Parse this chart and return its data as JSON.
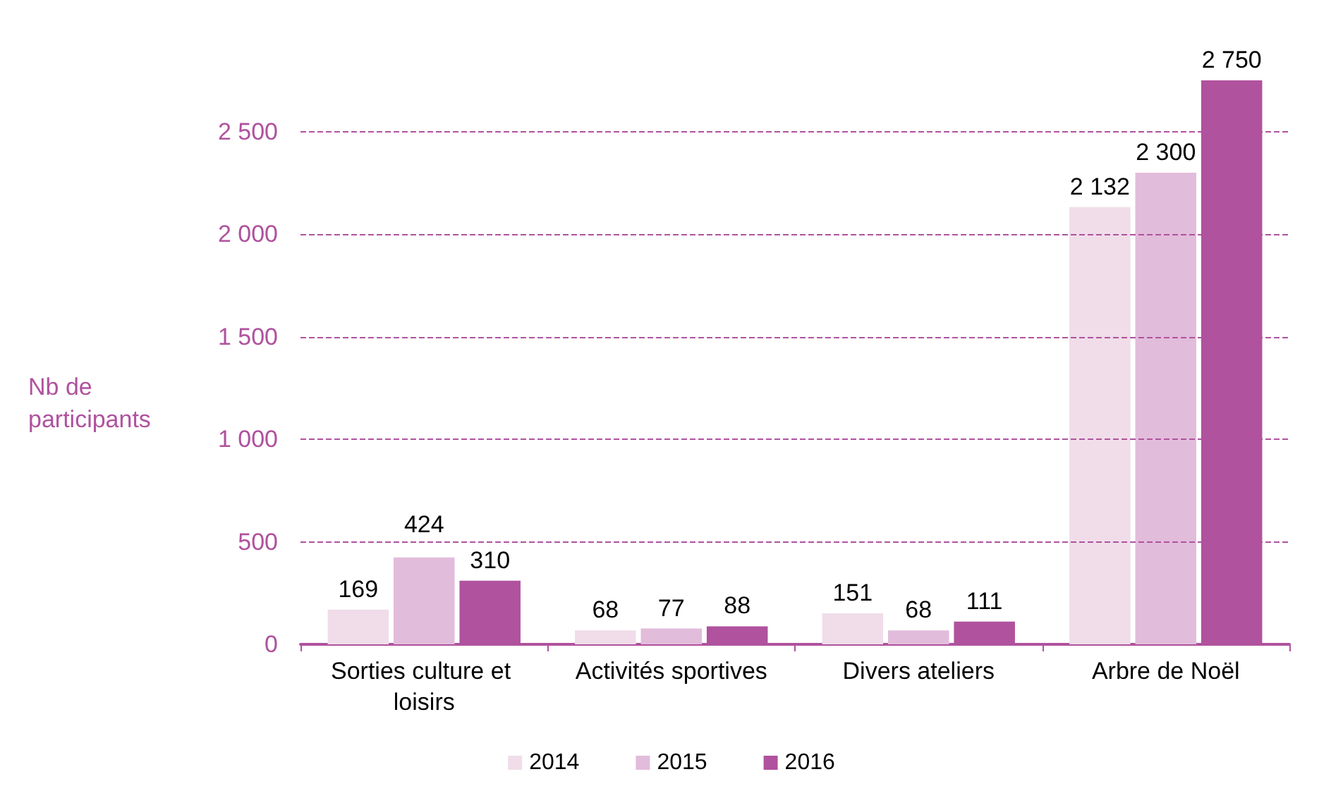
{
  "chart_data": {
    "type": "bar",
    "ylabel": "Nb de participants",
    "categories": [
      "Sorties culture et loisirs",
      "Activités sportives",
      "Divers ateliers",
      "Arbre de Noël"
    ],
    "series": [
      {
        "name": "2014",
        "color": "#f0dde9",
        "values": [
          169,
          68,
          151,
          2132
        ],
        "value_labels": [
          "169",
          "68",
          "151",
          "2 132"
        ]
      },
      {
        "name": "2015",
        "color": "#e2bcdb",
        "values": [
          424,
          77,
          68,
          2300
        ],
        "value_labels": [
          "424",
          "77",
          "68",
          "2 300"
        ]
      },
      {
        "name": "2016",
        "color": "#b0529e",
        "values": [
          310,
          88,
          111,
          2750
        ],
        "value_labels": [
          "310",
          "88",
          "111",
          "2 750"
        ]
      }
    ],
    "ylim": [
      0,
      2750
    ],
    "yticks": [
      {
        "value": 0,
        "label": "0"
      },
      {
        "value": 500,
        "label": "500"
      },
      {
        "value": 1000,
        "label": "1 000"
      },
      {
        "value": 1500,
        "label": "1 500"
      },
      {
        "value": 2000,
        "label": "2 000"
      },
      {
        "value": 2500,
        "label": "2 500"
      }
    ],
    "grid": "y",
    "legend": "bottom"
  }
}
